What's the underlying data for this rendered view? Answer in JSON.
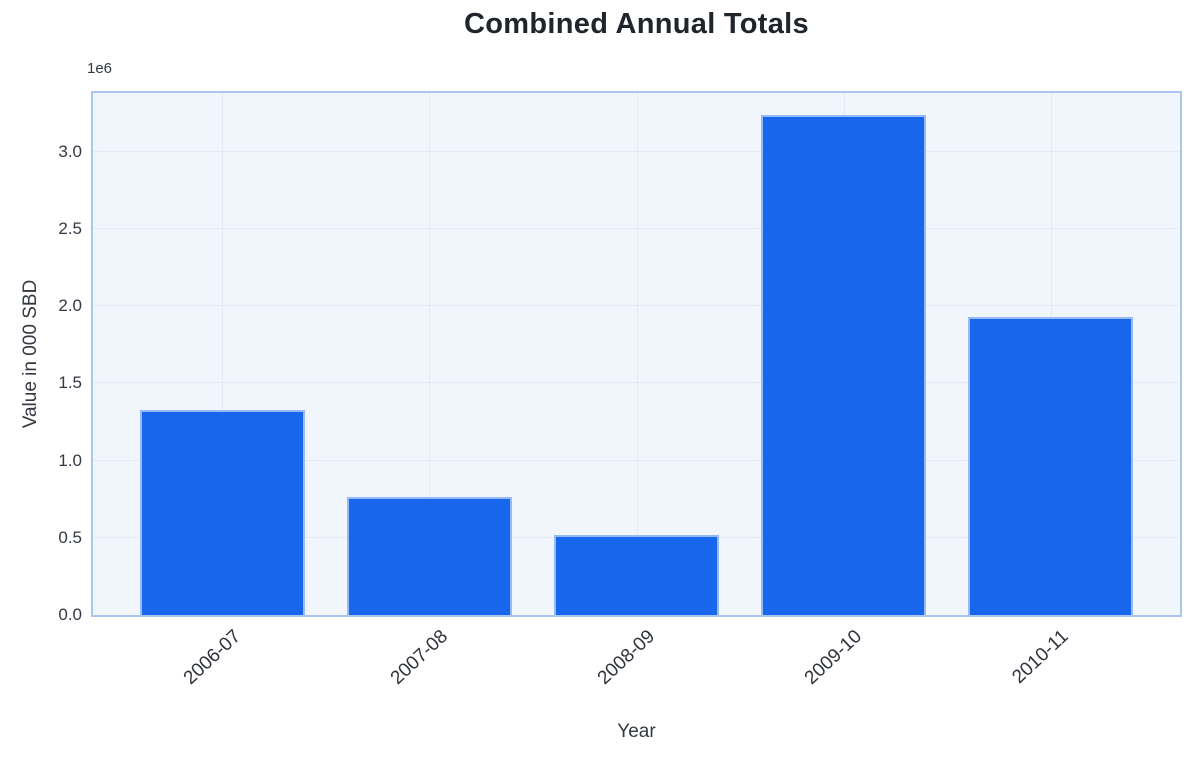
{
  "chart_data": {
    "type": "bar",
    "title": "Combined Annual Totals",
    "xlabel": "Year",
    "ylabel": "Value in 000 SBD",
    "offset_text": "1e6",
    "categories": [
      "2006-07",
      "2007-08",
      "2008-09",
      "2009-10",
      "2010-11"
    ],
    "values": [
      1325000,
      765000,
      515000,
      3240000,
      1930000
    ],
    "ylim": [
      0,
      3380000
    ],
    "yticks": [
      0,
      500000,
      1000000,
      1500000,
      2000000,
      2500000,
      3000000
    ],
    "ytick_labels": [
      "0.0",
      "0.5",
      "1.0",
      "1.5",
      "2.0",
      "2.5",
      "3.0"
    ],
    "grid": true,
    "legend": false,
    "bar_color": "#1766eb",
    "plot_bg": "#f1f5fc",
    "plot_border_color": "#a9c5f0",
    "grid_color": "#e3eaf6"
  }
}
